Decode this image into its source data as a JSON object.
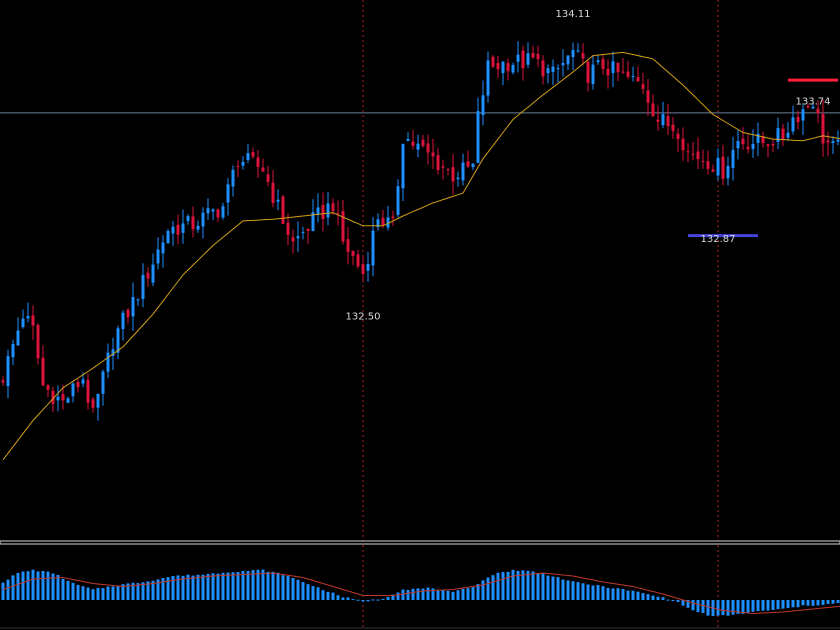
{
  "colors": {
    "background": "#000000",
    "candle_up": "#1e90ff",
    "candle_down": "#dc143c",
    "moving_average": "#d4a017",
    "crosshair": "#6d7f99",
    "separator_line": "#d8d8d8",
    "vertical_marker": "#b22222",
    "high_marker": "#ff1e3c",
    "low_marker": "#4444dd",
    "histogram": "#1e90ff",
    "signal_line": "#c0392b",
    "label_text": "#d8d8d8"
  },
  "chart_data": [
    {
      "type": "candlestick",
      "title": "",
      "ylim": [
        131.0,
        134.3
      ],
      "grid": false,
      "vertical_markers": [
        72,
        143
      ],
      "horizontal_line": 133.61,
      "labels": [
        {
          "text": "134.11",
          "value": 134.11,
          "bar": 114
        },
        {
          "text": "132.50",
          "value": 132.5,
          "bar": 72
        },
        {
          "text": "132.87",
          "value": 132.87,
          "bar": 143
        },
        {
          "text": "133.74",
          "value": 133.74,
          "bar": 162
        }
      ],
      "high_marker": {
        "value": 133.81,
        "from_bar": 157,
        "to_bar": 167
      },
      "low_marker": {
        "value": 132.86,
        "from_bar": 137,
        "to_bar": 151
      },
      "series": [
        {
          "kind": "ohlc",
          "keypoints": [
            [
              0,
              132.0
            ],
            [
              4,
              132.38
            ],
            [
              6,
              132.28
            ],
            [
              8,
              131.94
            ],
            [
              12,
              131.84
            ],
            [
              16,
              131.99
            ],
            [
              18,
              131.75
            ],
            [
              22,
              132.22
            ],
            [
              28,
              132.57
            ],
            [
              33,
              132.9
            ],
            [
              38,
              132.93
            ],
            [
              44,
              133.04
            ],
            [
              47,
              133.33
            ],
            [
              52,
              133.27
            ],
            [
              55,
              133.03
            ],
            [
              58,
              132.81
            ],
            [
              62,
              132.95
            ],
            [
              66,
              133.06
            ],
            [
              68,
              132.82
            ],
            [
              72,
              132.63
            ],
            [
              75,
              132.98
            ],
            [
              78,
              132.91
            ],
            [
              80,
              133.47
            ],
            [
              86,
              133.33
            ],
            [
              90,
              133.23
            ],
            [
              94,
              133.28
            ],
            [
              95,
              133.58
            ],
            [
              97,
              133.89
            ],
            [
              101,
              133.92
            ],
            [
              104,
              133.92
            ],
            [
              106,
              133.93
            ],
            [
              110,
              133.84
            ],
            [
              114,
              133.98
            ],
            [
              117,
              133.85
            ],
            [
              120,
              133.9
            ],
            [
              124,
              133.83
            ],
            [
              128,
              133.78
            ],
            [
              131,
              133.57
            ],
            [
              135,
              133.51
            ],
            [
              137,
              133.37
            ],
            [
              141,
              133.32
            ],
            [
              144,
              133.26
            ],
            [
              147,
              133.44
            ],
            [
              152,
              133.43
            ],
            [
              156,
              133.47
            ],
            [
              158,
              133.58
            ],
            [
              160,
              133.63
            ],
            [
              162,
              133.69
            ],
            [
              164,
              133.46
            ],
            [
              166,
              133.39
            ],
            [
              168,
              133.4
            ]
          ]
        },
        {
          "kind": "moving_average",
          "keypoints": [
            [
              0,
              131.49
            ],
            [
              6,
              131.73
            ],
            [
              12,
              131.93
            ],
            [
              18,
              132.05
            ],
            [
              24,
              132.18
            ],
            [
              30,
              132.38
            ],
            [
              36,
              132.62
            ],
            [
              42,
              132.8
            ],
            [
              48,
              132.95
            ],
            [
              54,
              132.96
            ],
            [
              60,
              132.98
            ],
            [
              66,
              133.0
            ],
            [
              72,
              132.92
            ],
            [
              76,
              132.92
            ],
            [
              80,
              132.98
            ],
            [
              86,
              133.06
            ],
            [
              92,
              133.12
            ],
            [
              96,
              133.33
            ],
            [
              102,
              133.57
            ],
            [
              108,
              133.72
            ],
            [
              114,
              133.86
            ],
            [
              118,
              133.96
            ],
            [
              124,
              133.98
            ],
            [
              130,
              133.94
            ],
            [
              136,
              133.78
            ],
            [
              142,
              133.6
            ],
            [
              148,
              133.49
            ],
            [
              154,
              133.45
            ],
            [
              160,
              133.44
            ],
            [
              164,
              133.47
            ],
            [
              168,
              133.45
            ]
          ]
        }
      ]
    },
    {
      "type": "bar",
      "title": "",
      "grid": false,
      "series": [
        {
          "kind": "histogram",
          "keypoints": [
            [
              0,
              0.6
            ],
            [
              3,
              0.9
            ],
            [
              6,
              1.0
            ],
            [
              10,
              0.9
            ],
            [
              14,
              0.55
            ],
            [
              18,
              0.35
            ],
            [
              23,
              0.5
            ],
            [
              28,
              0.6
            ],
            [
              34,
              0.8
            ],
            [
              40,
              0.85
            ],
            [
              46,
              0.95
            ],
            [
              52,
              1.0
            ],
            [
              56,
              0.85
            ],
            [
              60,
              0.6
            ],
            [
              64,
              0.35
            ],
            [
              68,
              0.1
            ],
            [
              72,
              -0.05
            ],
            [
              76,
              0.05
            ],
            [
              80,
              0.35
            ],
            [
              86,
              0.4
            ],
            [
              90,
              0.25
            ],
            [
              94,
              0.45
            ],
            [
              98,
              0.85
            ],
            [
              102,
              1.0
            ],
            [
              106,
              0.95
            ],
            [
              110,
              0.8
            ],
            [
              114,
              0.6
            ],
            [
              118,
              0.5
            ],
            [
              122,
              0.4
            ],
            [
              126,
              0.3
            ],
            [
              130,
              0.15
            ],
            [
              134,
              0.0
            ],
            [
              138,
              -0.35
            ],
            [
              142,
              -0.55
            ],
            [
              146,
              -0.5
            ],
            [
              150,
              -0.4
            ],
            [
              156,
              -0.3
            ],
            [
              160,
              -0.2
            ],
            [
              164,
              -0.15
            ],
            [
              168,
              -0.1
            ]
          ]
        },
        {
          "kind": "signal_line",
          "keypoints": [
            [
              0,
              0.35
            ],
            [
              6,
              0.7
            ],
            [
              12,
              0.75
            ],
            [
              18,
              0.55
            ],
            [
              24,
              0.45
            ],
            [
              30,
              0.55
            ],
            [
              36,
              0.7
            ],
            [
              42,
              0.8
            ],
            [
              48,
              0.85
            ],
            [
              54,
              0.9
            ],
            [
              60,
              0.75
            ],
            [
              66,
              0.45
            ],
            [
              72,
              0.15
            ],
            [
              78,
              0.15
            ],
            [
              84,
              0.3
            ],
            [
              90,
              0.35
            ],
            [
              96,
              0.5
            ],
            [
              102,
              0.8
            ],
            [
              108,
              0.9
            ],
            [
              114,
              0.8
            ],
            [
              120,
              0.6
            ],
            [
              126,
              0.45
            ],
            [
              132,
              0.2
            ],
            [
              138,
              -0.1
            ],
            [
              144,
              -0.35
            ],
            [
              150,
              -0.45
            ],
            [
              156,
              -0.4
            ],
            [
              162,
              -0.3
            ],
            [
              168,
              -0.2
            ]
          ]
        }
      ]
    }
  ]
}
